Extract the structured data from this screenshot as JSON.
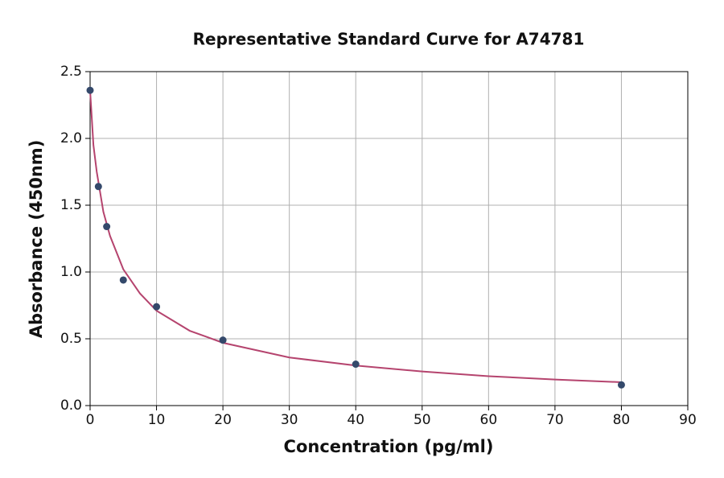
{
  "chart_data": {
    "type": "scatter",
    "title": "Representative Standard Curve for A74781",
    "x_label": "Concentration (pg/ml)",
    "y_label": "Absorbance (450nm)",
    "xlim": [
      0,
      90
    ],
    "ylim": [
      0,
      2.5
    ],
    "xticks": [
      0,
      10,
      20,
      30,
      40,
      50,
      60,
      70,
      80,
      90
    ],
    "yticks": [
      {
        "value": 0,
        "label": "0.0"
      },
      {
        "value": 0.5,
        "label": "0.5"
      },
      {
        "value": 1,
        "label": "1.0"
      },
      {
        "value": 1.5,
        "label": "1.5"
      },
      {
        "value": 2,
        "label": "2.0"
      },
      {
        "value": 2.5,
        "label": "2.5"
      }
    ],
    "grid": true,
    "points": {
      "color": "#34496b",
      "x": [
        0,
        1.25,
        2.5,
        5,
        10,
        20,
        40,
        80
      ],
      "y": [
        2.36,
        1.64,
        1.34,
        0.94,
        0.74,
        0.49,
        0.31,
        0.155
      ]
    },
    "curve": {
      "color": "#b5446e",
      "x": [
        0,
        0.5,
        1,
        2,
        3,
        5,
        7.5,
        10,
        15,
        20,
        30,
        40,
        50,
        60,
        70,
        80
      ],
      "y": [
        2.36,
        1.95,
        1.75,
        1.45,
        1.27,
        1.02,
        0.84,
        0.71,
        0.56,
        0.47,
        0.36,
        0.3,
        0.255,
        0.22,
        0.195,
        0.175
      ]
    }
  }
}
